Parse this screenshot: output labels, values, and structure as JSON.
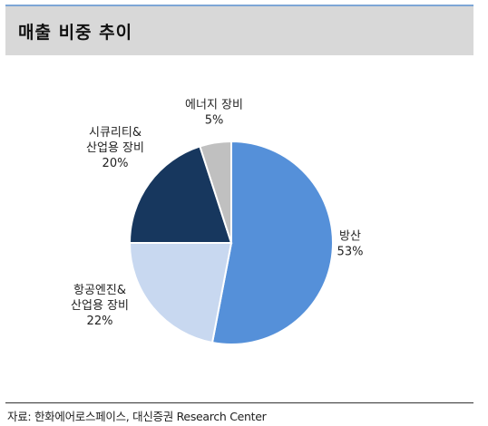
{
  "header": {
    "title": "매출 비중 추이"
  },
  "chart_data": {
    "type": "pie",
    "title": "매출 비중 추이",
    "slices": [
      {
        "label": [
          "방산"
        ],
        "percent_label": "53%",
        "value": 53,
        "color": "#5590d9"
      },
      {
        "label": [
          "항공엔진&",
          "산업용 장비"
        ],
        "percent_label": "22%",
        "value": 22,
        "color": "#c8d8f0"
      },
      {
        "label": [
          "시큐리티&",
          "산업용 장비"
        ],
        "percent_label": "20%",
        "value": 20,
        "color": "#17375e"
      },
      {
        "label": [
          "에너지 장비"
        ],
        "percent_label": "5%",
        "value": 5,
        "color": "#c0c0c0"
      }
    ],
    "start_angle_deg": 0,
    "direction": "clockwise"
  },
  "footer": {
    "source": "자료: 한화에어로스페이스, 대신증권 Research Center"
  }
}
